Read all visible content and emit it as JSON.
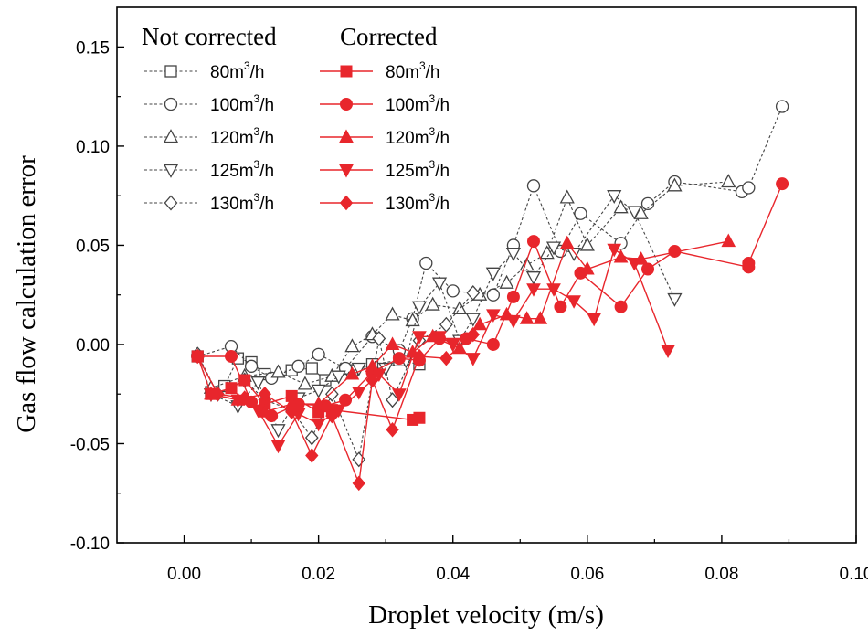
{
  "chart_data": {
    "type": "line",
    "title": "",
    "xlabel": "Droplet velocity  (m/s)",
    "ylabel": "Gas flow calculation error",
    "xlim": [
      -0.01,
      0.1
    ],
    "ylim": [
      -0.1,
      0.17
    ],
    "xticks": [
      0.0,
      0.02,
      0.04,
      0.06,
      0.08,
      0.1
    ],
    "xtick_labels": [
      "0.00",
      "0.02",
      "0.04",
      "0.06",
      "0.08",
      "0.10"
    ],
    "yticks": [
      -0.1,
      -0.05,
      0.0,
      0.05,
      0.1,
      0.15
    ],
    "ytick_labels": [
      "-0.10",
      "-0.05",
      "0.00",
      "0.05",
      "0.10",
      "0.15"
    ],
    "grid": false,
    "legend": {
      "placement": "top-left",
      "header_left": "Not corrected",
      "header_right": "Corrected"
    },
    "colors": {
      "corrected": "#e8262c",
      "not_corrected": "#444444",
      "axis": "#000000"
    },
    "series": [
      {
        "name": "80m3/h",
        "label_main": "80m",
        "label_sup": "3",
        "label_tail": "/h",
        "group": "not_corrected",
        "marker": "square",
        "points": [
          [
            0.002,
            -0.006
          ],
          [
            0.004,
            -0.024
          ],
          [
            0.006,
            -0.021
          ],
          [
            0.008,
            -0.007
          ],
          [
            0.01,
            -0.009
          ],
          [
            0.012,
            -0.015
          ],
          [
            0.016,
            -0.013
          ],
          [
            0.019,
            -0.012
          ],
          [
            0.021,
            -0.018
          ],
          [
            0.025,
            -0.013
          ],
          [
            0.028,
            -0.01
          ],
          [
            0.032,
            -0.008
          ],
          [
            0.035,
            -0.01
          ]
        ]
      },
      {
        "name": "100m3/h",
        "label_main": "100m",
        "label_sup": "3",
        "label_tail": "/h",
        "group": "not_corrected",
        "marker": "circle",
        "points": [
          [
            0.002,
            -0.006
          ],
          [
            0.007,
            -0.001
          ],
          [
            0.01,
            -0.011
          ],
          [
            0.013,
            -0.017
          ],
          [
            0.017,
            -0.011
          ],
          [
            0.02,
            -0.005
          ],
          [
            0.024,
            -0.012
          ],
          [
            0.028,
            0.004
          ],
          [
            0.032,
            -0.003
          ],
          [
            0.034,
            0.013
          ],
          [
            0.036,
            0.041
          ],
          [
            0.04,
            0.027
          ],
          [
            0.046,
            0.025
          ],
          [
            0.049,
            0.05
          ],
          [
            0.052,
            0.08
          ],
          [
            0.056,
            0.047
          ],
          [
            0.059,
            0.066
          ],
          [
            0.065,
            0.051
          ],
          [
            0.069,
            0.071
          ],
          [
            0.073,
            0.082
          ],
          [
            0.083,
            0.077
          ],
          [
            0.084,
            0.079
          ],
          [
            0.089,
            0.12
          ]
        ]
      },
      {
        "name": "120m3/h",
        "label_main": "120m",
        "label_sup": "3",
        "label_tail": "/h",
        "group": "not_corrected",
        "marker": "triangle-up",
        "points": [
          [
            0.004,
            -0.022
          ],
          [
            0.009,
            -0.016
          ],
          [
            0.014,
            -0.014
          ],
          [
            0.018,
            -0.02
          ],
          [
            0.022,
            -0.016
          ],
          [
            0.025,
            -0.001
          ],
          [
            0.028,
            0.005
          ],
          [
            0.031,
            0.015
          ],
          [
            0.034,
            0.012
          ],
          [
            0.037,
            0.02
          ],
          [
            0.041,
            0.018
          ],
          [
            0.044,
            0.025
          ],
          [
            0.048,
            0.031
          ],
          [
            0.051,
            0.04
          ],
          [
            0.054,
            0.046
          ],
          [
            0.057,
            0.074
          ],
          [
            0.06,
            0.05
          ],
          [
            0.065,
            0.069
          ],
          [
            0.068,
            0.066
          ],
          [
            0.073,
            0.08
          ],
          [
            0.081,
            0.082
          ]
        ]
      },
      {
        "name": "125m3/h",
        "label_main": "125m",
        "label_sup": "3",
        "label_tail": "/h",
        "group": "not_corrected",
        "marker": "triangle-down",
        "points": [
          [
            0.004,
            -0.025
          ],
          [
            0.008,
            -0.031
          ],
          [
            0.011,
            -0.019
          ],
          [
            0.014,
            -0.043
          ],
          [
            0.017,
            -0.027
          ],
          [
            0.02,
            -0.023
          ],
          [
            0.023,
            -0.016
          ],
          [
            0.026,
            -0.012
          ],
          [
            0.03,
            -0.012
          ],
          [
            0.033,
            -0.008
          ],
          [
            0.035,
            0.019
          ],
          [
            0.038,
            0.031
          ],
          [
            0.041,
            0.002
          ],
          [
            0.043,
            0.013
          ],
          [
            0.046,
            0.036
          ],
          [
            0.049,
            0.046
          ],
          [
            0.052,
            0.034
          ],
          [
            0.055,
            0.049
          ],
          [
            0.058,
            0.046
          ],
          [
            0.064,
            0.075
          ],
          [
            0.067,
            0.067
          ],
          [
            0.073,
            0.023
          ]
        ]
      },
      {
        "name": "130m3/h",
        "label_main": "130m",
        "label_sup": "3",
        "label_tail": "/h",
        "group": "not_corrected",
        "marker": "diamond",
        "points": [
          [
            0.002,
            -0.005
          ],
          [
            0.005,
            -0.025
          ],
          [
            0.009,
            -0.018
          ],
          [
            0.012,
            -0.028
          ],
          [
            0.016,
            -0.033
          ],
          [
            0.019,
            -0.047
          ],
          [
            0.022,
            -0.025
          ],
          [
            0.026,
            -0.058
          ],
          [
            0.029,
            0.003
          ],
          [
            0.031,
            -0.028
          ],
          [
            0.035,
            0.002
          ],
          [
            0.039,
            0.01
          ],
          [
            0.043,
            0.026
          ]
        ]
      },
      {
        "name": "80m3/h",
        "label_main": "80m",
        "label_sup": "3",
        "label_tail": "/h",
        "group": "corrected",
        "marker": "square",
        "points": [
          [
            0.002,
            -0.006
          ],
          [
            0.004,
            -0.025
          ],
          [
            0.007,
            -0.022
          ],
          [
            0.009,
            -0.018
          ],
          [
            0.012,
            -0.03
          ],
          [
            0.016,
            -0.026
          ],
          [
            0.02,
            -0.034
          ],
          [
            0.022,
            -0.033
          ],
          [
            0.034,
            -0.038
          ],
          [
            0.035,
            -0.037
          ]
        ]
      },
      {
        "name": "100m3/h",
        "label_main": "100m",
        "label_sup": "3",
        "label_tail": "/h",
        "group": "corrected",
        "marker": "circle",
        "points": [
          [
            0.002,
            -0.006
          ],
          [
            0.007,
            -0.006
          ],
          [
            0.01,
            -0.029
          ],
          [
            0.013,
            -0.036
          ],
          [
            0.017,
            -0.03
          ],
          [
            0.021,
            -0.031
          ],
          [
            0.024,
            -0.028
          ],
          [
            0.028,
            -0.014
          ],
          [
            0.032,
            -0.007
          ],
          [
            0.035,
            -0.008
          ],
          [
            0.038,
            0.003
          ],
          [
            0.042,
            0.003
          ],
          [
            0.046,
            0.0
          ],
          [
            0.049,
            0.024
          ],
          [
            0.052,
            0.052
          ],
          [
            0.056,
            0.019
          ],
          [
            0.059,
            0.036
          ],
          [
            0.065,
            0.019
          ],
          [
            0.069,
            0.038
          ],
          [
            0.073,
            0.047
          ],
          [
            0.084,
            0.039
          ],
          [
            0.084,
            0.041
          ],
          [
            0.089,
            0.081
          ]
        ]
      },
      {
        "name": "120m3/h",
        "label_main": "120m",
        "label_sup": "3",
        "label_tail": "/h",
        "group": "corrected",
        "marker": "triangle-up",
        "points": [
          [
            0.004,
            -0.025
          ],
          [
            0.008,
            -0.028
          ],
          [
            0.012,
            -0.034
          ],
          [
            0.016,
            -0.03
          ],
          [
            0.02,
            -0.03
          ],
          [
            0.025,
            -0.015
          ],
          [
            0.028,
            -0.011
          ],
          [
            0.031,
            0.0
          ],
          [
            0.034,
            -0.004
          ],
          [
            0.037,
            0.004
          ],
          [
            0.041,
            -0.002
          ],
          [
            0.044,
            0.01
          ],
          [
            0.048,
            0.015
          ],
          [
            0.051,
            0.013
          ],
          [
            0.053,
            0.013
          ],
          [
            0.057,
            0.051
          ],
          [
            0.06,
            0.038
          ],
          [
            0.065,
            0.044
          ],
          [
            0.068,
            0.043
          ],
          [
            0.081,
            0.052
          ]
        ]
      },
      {
        "name": "125m3/h",
        "label_main": "125m",
        "label_sup": "3",
        "label_tail": "/h",
        "group": "corrected",
        "marker": "triangle-down",
        "points": [
          [
            0.004,
            -0.025
          ],
          [
            0.008,
            -0.028
          ],
          [
            0.011,
            -0.033
          ],
          [
            0.014,
            -0.051
          ],
          [
            0.017,
            -0.035
          ],
          [
            0.02,
            -0.04
          ],
          [
            0.023,
            -0.033
          ],
          [
            0.026,
            -0.024
          ],
          [
            0.029,
            -0.015
          ],
          [
            0.032,
            -0.025
          ],
          [
            0.035,
            0.004
          ],
          [
            0.038,
            0.004
          ],
          [
            0.04,
            0.0
          ],
          [
            0.043,
            -0.007
          ],
          [
            0.046,
            0.015
          ],
          [
            0.049,
            0.012
          ],
          [
            0.052,
            0.028
          ],
          [
            0.055,
            0.028
          ],
          [
            0.058,
            0.022
          ],
          [
            0.061,
            0.013
          ],
          [
            0.064,
            0.048
          ],
          [
            0.067,
            0.041
          ],
          [
            0.072,
            -0.003
          ]
        ]
      },
      {
        "name": "130m3/h",
        "label_main": "130m",
        "label_sup": "3",
        "label_tail": "/h",
        "group": "corrected",
        "marker": "diamond",
        "points": [
          [
            0.002,
            -0.006
          ],
          [
            0.005,
            -0.025
          ],
          [
            0.009,
            -0.027
          ],
          [
            0.012,
            -0.025
          ],
          [
            0.016,
            -0.034
          ],
          [
            0.019,
            -0.056
          ],
          [
            0.022,
            -0.036
          ],
          [
            0.026,
            -0.07
          ],
          [
            0.028,
            -0.018
          ],
          [
            0.031,
            -0.043
          ],
          [
            0.035,
            -0.006
          ],
          [
            0.039,
            -0.007
          ],
          [
            0.043,
            0.005
          ]
        ]
      }
    ]
  }
}
